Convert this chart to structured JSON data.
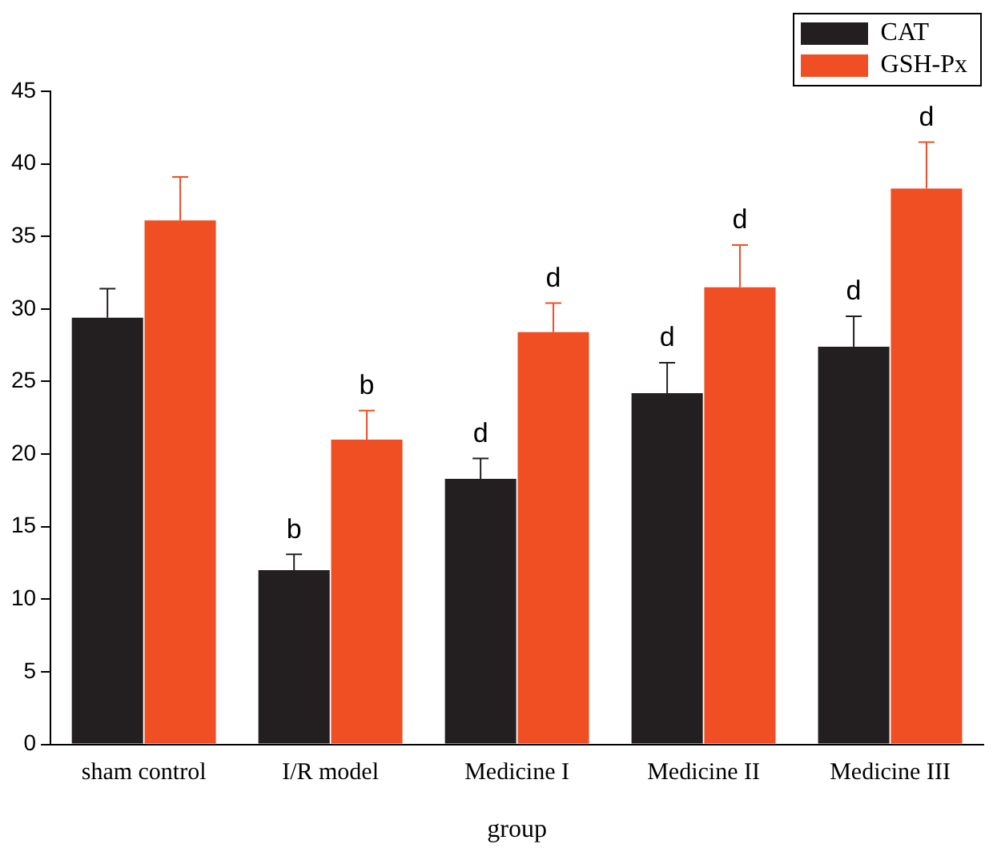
{
  "chart_data": {
    "type": "bar",
    "xlabel": "group",
    "categories": [
      "sham control",
      "I/R model",
      "Medicine I",
      "Medicine II",
      "Medicine III"
    ],
    "series": [
      {
        "name": "CAT",
        "color": "#231f20",
        "values": [
          29.4,
          12.0,
          18.3,
          24.2,
          27.4
        ],
        "errors": [
          [
            29.4,
            31.4
          ],
          [
            12.0,
            13.1
          ],
          [
            18.3,
            19.7
          ],
          [
            24.2,
            26.3
          ],
          [
            27.4,
            29.5
          ]
        ]
      },
      {
        "name": "GSH-Px",
        "color": "#f04e23",
        "values": [
          36.1,
          21.0,
          28.4,
          31.5,
          38.3
        ],
        "errors": [
          [
            36.1,
            39.1
          ],
          [
            21.0,
            23.0
          ],
          [
            28.4,
            30.4
          ],
          [
            31.5,
            34.4
          ],
          [
            38.3,
            41.5
          ]
        ]
      }
    ],
    "ylim": [
      0,
      45
    ],
    "yticks": [
      0,
      5,
      10,
      15,
      20,
      25,
      30,
      35,
      40,
      45
    ],
    "grid": false,
    "legend": "top right",
    "annotations": [
      {
        "text": "b",
        "x": "I/R model",
        "y": 12.0
      },
      {
        "text": "b",
        "x": "I/R model",
        "y": 21.0
      },
      {
        "text": "d",
        "x": "Medicine I",
        "y": 18.3
      },
      {
        "text": "d",
        "x": "Medicine I",
        "y": 28.4
      },
      {
        "text": "d",
        "x": "Medicine II",
        "y": 24.2
      },
      {
        "text": "d",
        "x": "Medicine II",
        "y": 31.5
      },
      {
        "text": "d",
        "x": "Medicine III",
        "y": 27.4
      },
      {
        "text": "d",
        "x": "Medicine III",
        "y": 38.3
      }
    ]
  }
}
